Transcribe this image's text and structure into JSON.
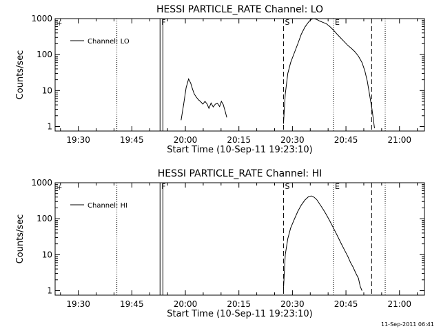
{
  "timestamp": "11-Sep-2011 06:41",
  "chart_data": [
    {
      "type": "line",
      "title": "HESSI PARTICLE_RATE Channel: LO",
      "xlabel": "Start Time (10-Sep-11 19:23:10)",
      "ylabel": "Counts/sec",
      "yscale": "log",
      "ylim": [
        0.75,
        1000
      ],
      "xlim_minutes": [
        1163.5,
        1267
      ],
      "x_ticks": [
        {
          "m": 1170,
          "label": "19:30"
        },
        {
          "m": 1185,
          "label": "19:45"
        },
        {
          "m": 1200,
          "label": "20:00"
        },
        {
          "m": 1215,
          "label": "20:15"
        },
        {
          "m": 1230,
          "label": "20:30"
        },
        {
          "m": 1245,
          "label": "20:45"
        },
        {
          "m": 1260,
          "label": "21:00"
        }
      ],
      "y_ticks": [
        {
          "v": 1,
          "label": "1"
        },
        {
          "v": 10,
          "label": "10"
        },
        {
          "v": 100,
          "label": "100"
        },
        {
          "v": 1000,
          "label": "1000"
        }
      ],
      "legend": {
        "entry": "Channel: LO",
        "placement": "top-left"
      },
      "markers": [
        {
          "m": 1180.8,
          "style": "dotted",
          "label": ""
        },
        {
          "m": 1192.9,
          "style": "solid",
          "label": "F"
        },
        {
          "m": 1193.7,
          "style": "solid",
          "label": ""
        },
        {
          "m": 1227.5,
          "style": "dashed",
          "label": "S"
        },
        {
          "m": 1241.5,
          "style": "dotted",
          "label": "E"
        },
        {
          "m": 1252.2,
          "style": "dashed",
          "label": ""
        },
        {
          "m": 1256.0,
          "style": "dotted",
          "label": ""
        }
      ],
      "series": [
        {
          "segment": "first",
          "x": [
            1198.8,
            1199.5,
            1200.2,
            1200.9,
            1201.5,
            1202.0,
            1202.5,
            1203.1,
            1203.7,
            1204.2,
            1204.9,
            1205.5,
            1206.1,
            1206.6,
            1207.2,
            1207.8,
            1208.4,
            1209.0,
            1209.6,
            1210.1,
            1210.6,
            1211.1,
            1211.6
          ],
          "y": [
            1.5,
            4,
            12,
            21,
            16,
            11,
            8,
            6.5,
            5.5,
            5,
            4.2,
            5,
            4.2,
            3.2,
            4.5,
            3.5,
            4.2,
            4.4,
            3.6,
            5,
            4.1,
            2.8,
            1.8
          ]
        },
        {
          "segment": "second",
          "x": [
            1227.5,
            1228.0,
            1228.7,
            1229.5,
            1230.5,
            1231.5,
            1232.5,
            1233.5,
            1234.5,
            1235.3,
            1236.0,
            1236.8,
            1237.6,
            1238.5,
            1239.5,
            1240.5,
            1241.5,
            1242.5,
            1243.5,
            1244.5,
            1245.5,
            1246.5,
            1247.5,
            1248.5,
            1249.5,
            1250.3,
            1251.0,
            1251.6,
            1252.3,
            1253.0
          ],
          "y": [
            1.2,
            8,
            30,
            60,
            110,
            200,
            370,
            580,
            800,
            960,
            1000,
            950,
            860,
            790,
            720,
            600,
            480,
            370,
            290,
            230,
            180,
            150,
            120,
            90,
            60,
            35,
            18,
            8,
            3,
            0.9
          ]
        }
      ]
    },
    {
      "type": "line",
      "title": "HESSI PARTICLE_RATE Channel: HI",
      "xlabel": "Start Time (10-Sep-11 19:23:10)",
      "ylabel": "Counts/sec",
      "yscale": "log",
      "ylim": [
        0.75,
        1000
      ],
      "xlim_minutes": [
        1163.5,
        1267
      ],
      "x_ticks": [
        {
          "m": 1170,
          "label": "19:30"
        },
        {
          "m": 1185,
          "label": "19:45"
        },
        {
          "m": 1200,
          "label": "20:00"
        },
        {
          "m": 1215,
          "label": "20:15"
        },
        {
          "m": 1230,
          "label": "20:30"
        },
        {
          "m": 1245,
          "label": "20:45"
        },
        {
          "m": 1260,
          "label": "21:00"
        }
      ],
      "y_ticks": [
        {
          "v": 1,
          "label": "1"
        },
        {
          "v": 10,
          "label": "10"
        },
        {
          "v": 100,
          "label": "100"
        },
        {
          "v": 1000,
          "label": "1000"
        }
      ],
      "legend": {
        "entry": "Channel: HI",
        "placement": "top-left"
      },
      "markers": [
        {
          "m": 1180.8,
          "style": "dotted",
          "label": ""
        },
        {
          "m": 1192.9,
          "style": "solid",
          "label": "F"
        },
        {
          "m": 1193.7,
          "style": "solid",
          "label": ""
        },
        {
          "m": 1227.5,
          "style": "dashed",
          "label": "S"
        },
        {
          "m": 1241.5,
          "style": "dotted",
          "label": "E"
        },
        {
          "m": 1252.2,
          "style": "dashed",
          "label": ""
        },
        {
          "m": 1256.0,
          "style": "dotted",
          "label": ""
        }
      ],
      "series": [
        {
          "segment": "first",
          "x": [
            1227.5,
            1228.0,
            1228.7,
            1229.5,
            1230.5,
            1231.5,
            1232.5,
            1233.5,
            1234.5,
            1235.3,
            1236.0,
            1236.8,
            1237.6,
            1238.5,
            1239.5,
            1240.5,
            1241.5,
            1242.5,
            1243.5,
            1244.5,
            1245.5,
            1246.3,
            1247.0,
            1247.8,
            1248.5,
            1249.0,
            1249.5
          ],
          "y": [
            1.1,
            10,
            28,
            55,
            95,
            160,
            240,
            330,
            410,
            430,
            400,
            340,
            260,
            190,
            130,
            85,
            55,
            35,
            22,
            14,
            9,
            6,
            4.5,
            3,
            2.2,
            1.3,
            1
          ]
        }
      ]
    }
  ]
}
